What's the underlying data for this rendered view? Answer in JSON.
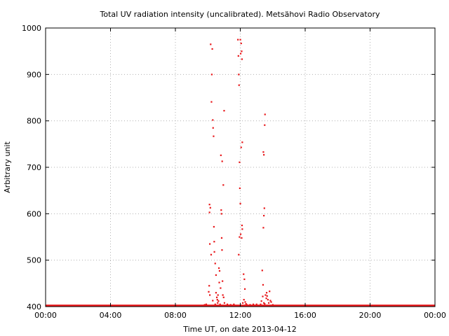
{
  "chart_data": {
    "type": "scatter",
    "title": "Total UV radiation intensity (uncalibrated). Metsähovi Radio Observatory",
    "xlabel": "Time UT, on date 2013-04-12",
    "ylabel": "Arbitrary unit",
    "xlim": [
      0,
      24
    ],
    "ylim": [
      400,
      1000
    ],
    "x_ticks": [
      {
        "value": 0,
        "label": "00:00"
      },
      {
        "value": 4,
        "label": "04:00"
      },
      {
        "value": 8,
        "label": "08:00"
      },
      {
        "value": 12,
        "label": "12:00"
      },
      {
        "value": 16,
        "label": "16:00"
      },
      {
        "value": 20,
        "label": "20:00"
      },
      {
        "value": 24,
        "label": "00:00"
      }
    ],
    "y_ticks": [
      {
        "value": 400,
        "label": "400"
      },
      {
        "value": 500,
        "label": "500"
      },
      {
        "value": 600,
        "label": "600"
      },
      {
        "value": 700,
        "label": "700"
      },
      {
        "value": 800,
        "label": "800"
      },
      {
        "value": 900,
        "label": "900"
      },
      {
        "value": 1000,
        "label": "1000"
      }
    ],
    "grid": true,
    "marker_color": "#e8171a",
    "baseline": {
      "y": 402,
      "x_start": 0,
      "x_end": 24
    },
    "points": [
      [
        10.08,
        445
      ],
      [
        10.1,
        620
      ],
      [
        10.1,
        603
      ],
      [
        10.12,
        535
      ],
      [
        10.15,
        613
      ],
      [
        10.17,
        965
      ],
      [
        10.2,
        512
      ],
      [
        10.22,
        841
      ],
      [
        10.24,
        900
      ],
      [
        10.27,
        955
      ],
      [
        10.3,
        802
      ],
      [
        10.32,
        785
      ],
      [
        10.35,
        767
      ],
      [
        10.37,
        572
      ],
      [
        10.39,
        540
      ],
      [
        10.4,
        518
      ],
      [
        10.45,
        493
      ],
      [
        10.5,
        468
      ],
      [
        10.55,
        420
      ],
      [
        10.6,
        408
      ],
      [
        10.62,
        425
      ],
      [
        10.65,
        412
      ],
      [
        10.68,
        483
      ],
      [
        10.7,
        452
      ],
      [
        10.72,
        477
      ],
      [
        10.75,
        405
      ],
      [
        10.78,
        440
      ],
      [
        10.8,
        726
      ],
      [
        10.82,
        608
      ],
      [
        10.84,
        600
      ],
      [
        10.85,
        548
      ],
      [
        10.87,
        522
      ],
      [
        10.88,
        713
      ],
      [
        10.9,
        455
      ],
      [
        10.92,
        425
      ],
      [
        10.95,
        662
      ],
      [
        10.97,
        420
      ],
      [
        11.0,
        822
      ],
      [
        11.02,
        408
      ],
      [
        10.05,
        432
      ],
      [
        10.12,
        425
      ],
      [
        10.3,
        413
      ],
      [
        10.45,
        405
      ],
      [
        10.5,
        430
      ],
      [
        10.58,
        415
      ],
      [
        11.85,
        975
      ],
      [
        11.88,
        940
      ],
      [
        11.9,
        900
      ],
      [
        11.92,
        877
      ],
      [
        11.95,
        711
      ],
      [
        11.97,
        655
      ],
      [
        12.0,
        975
      ],
      [
        12.02,
        945
      ],
      [
        12.05,
        967
      ],
      [
        12.08,
        950
      ],
      [
        12.1,
        933
      ],
      [
        12.12,
        754
      ],
      [
        12.05,
        743
      ],
      [
        12.0,
        622
      ],
      [
        12.1,
        575
      ],
      [
        12.12,
        567
      ],
      [
        11.95,
        550
      ],
      [
        12.02,
        556
      ],
      [
        12.08,
        548
      ],
      [
        11.9,
        512
      ],
      [
        12.2,
        470
      ],
      [
        12.25,
        459
      ],
      [
        12.28,
        438
      ],
      [
        12.22,
        415
      ],
      [
        12.3,
        410
      ],
      [
        12.15,
        408
      ],
      [
        12.35,
        406
      ],
      [
        12.4,
        404
      ],
      [
        13.35,
        478
      ],
      [
        13.4,
        447
      ],
      [
        13.38,
        422
      ],
      [
        13.42,
        570
      ],
      [
        13.45,
        596
      ],
      [
        13.48,
        612
      ],
      [
        13.42,
        733
      ],
      [
        13.45,
        727
      ],
      [
        13.5,
        791
      ],
      [
        13.52,
        814
      ],
      [
        13.55,
        425
      ],
      [
        13.6,
        418
      ],
      [
        13.62,
        430
      ],
      [
        13.65,
        423
      ],
      [
        13.7,
        415
      ],
      [
        13.75,
        408
      ],
      [
        13.8,
        433
      ],
      [
        13.85,
        413
      ],
      [
        13.9,
        410
      ],
      [
        13.45,
        408
      ],
      [
        13.5,
        406
      ],
      [
        13.3,
        412
      ],
      [
        13.25,
        405
      ],
      [
        9.8,
        404
      ],
      [
        9.9,
        405
      ],
      [
        11.2,
        405
      ],
      [
        11.4,
        404
      ],
      [
        11.6,
        405
      ],
      [
        12.6,
        404
      ],
      [
        12.8,
        405
      ],
      [
        13.0,
        405
      ],
      [
        14.0,
        404
      ]
    ]
  }
}
